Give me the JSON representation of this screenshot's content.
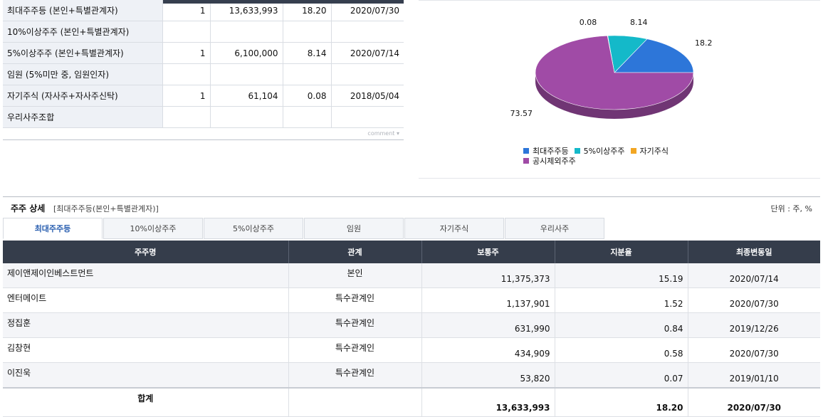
{
  "summary": {
    "rows": [
      {
        "label": "최대주주등 (본인+특별관계자)",
        "count": "1",
        "shares": "13,633,993",
        "ratio": "18.20",
        "date": "2020/07/30"
      },
      {
        "label": "10%이상주주 (본인+특별관계자)",
        "count": "",
        "shares": "",
        "ratio": "",
        "date": ""
      },
      {
        "label": "5%이상주주 (본인+특별관계자)",
        "count": "1",
        "shares": "6,100,000",
        "ratio": "8.14",
        "date": "2020/07/14"
      },
      {
        "label": "임원 (5%미만 중, 임원인자)",
        "count": "",
        "shares": "",
        "ratio": "",
        "date": ""
      },
      {
        "label": "자기주식 (자사주+자사주신탁)",
        "count": "1",
        "shares": "61,104",
        "ratio": "0.08",
        "date": "2018/05/04"
      },
      {
        "label": "우리사주조합",
        "count": "",
        "shares": "",
        "ratio": "",
        "date": ""
      }
    ],
    "comment_label": "comment"
  },
  "chart_data": {
    "type": "pie",
    "slices": [
      {
        "label": "최대주주등",
        "value": 18.2,
        "color": "#2d76d9"
      },
      {
        "label": "5%이상주주",
        "value": 8.14,
        "color": "#14b9c9"
      },
      {
        "label": "자기주식",
        "value": 0.08,
        "color": "#f2a623"
      },
      {
        "label": "공시제외주주",
        "value": 73.57,
        "color": "#a04ba6"
      }
    ],
    "value_labels": [
      "18.2",
      "8.14",
      "0.08",
      "73.57"
    ],
    "legend_position": "bottom"
  },
  "detail": {
    "title": "주주 상세",
    "subtitle": "[최대주주등(본인+특별관계자)]",
    "unit": "단위 : 주, %",
    "tabs": [
      "최대주주등",
      "10%이상주주",
      "5%이상주주",
      "임원",
      "자기주식",
      "우리사주"
    ],
    "active_tab": 0,
    "headers": [
      "주주명",
      "관계",
      "보통주",
      "지분율",
      "최종변동일"
    ],
    "rows": [
      {
        "name": "제이앤제이인베스트먼트",
        "relation": "본인",
        "shares": "11,375,373",
        "ratio": "15.19",
        "date": "2020/07/14"
      },
      {
        "name": "엔터메이트",
        "relation": "특수관계인",
        "shares": "1,137,901",
        "ratio": "1.52",
        "date": "2020/07/30"
      },
      {
        "name": "정집훈",
        "relation": "특수관계인",
        "shares": "631,990",
        "ratio": "0.84",
        "date": "2019/12/26"
      },
      {
        "name": "김창현",
        "relation": "특수관계인",
        "shares": "434,909",
        "ratio": "0.58",
        "date": "2020/07/30"
      },
      {
        "name": "이진욱",
        "relation": "특수관계인",
        "shares": "53,820",
        "ratio": "0.07",
        "date": "2019/01/10"
      }
    ],
    "total": {
      "label": "합계",
      "shares": "13,633,993",
      "ratio": "18.20",
      "date": "2020/07/30"
    }
  }
}
